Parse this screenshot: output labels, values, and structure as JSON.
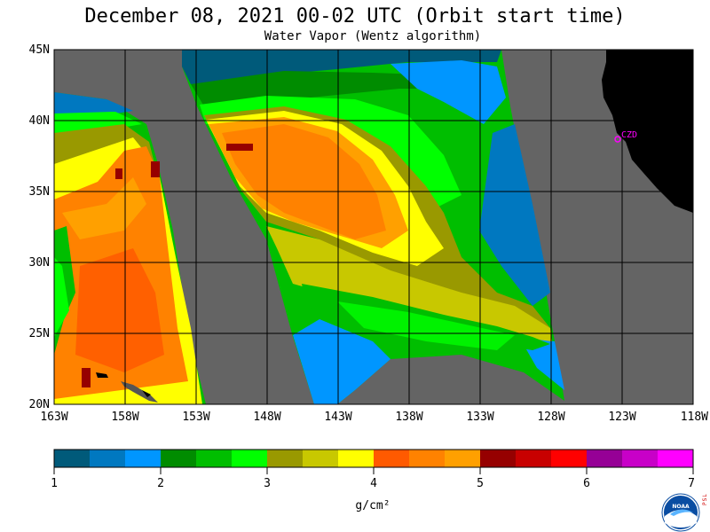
{
  "header": {
    "title": "December 08, 2021  00-02 UTC  (Orbit start time)",
    "subtitle": "Water Vapor (Wentz algorithm)"
  },
  "map": {
    "lat_range": [
      20,
      45
    ],
    "lon_range": [
      -163,
      -118
    ],
    "lat_labels": [
      "20N",
      "25N",
      "30N",
      "35N",
      "40N",
      "45N"
    ],
    "lon_labels": [
      "163W",
      "158W",
      "153W",
      "148W",
      "143W",
      "138W",
      "133W",
      "128W",
      "123W",
      "118W"
    ],
    "station_label": "CZD",
    "colors": {
      "no_data": "#646464",
      "land": "#000000",
      "station": "#ff00ff",
      "grid": "#000000"
    }
  },
  "colorbar": {
    "min": 1,
    "max": 7,
    "tick_labels": [
      "1",
      "2",
      "3",
      "4",
      "5",
      "6",
      "7"
    ],
    "colors": [
      "#005a7a",
      "#0078c0",
      "#0096ff",
      "#008c00",
      "#00be00",
      "#00ff00",
      "#999900",
      "#c8c800",
      "#ffff00",
      "#ff5a00",
      "#ff8200",
      "#ffa000",
      "#960000",
      "#c80000",
      "#ff0000",
      "#960096",
      "#c800c8",
      "#ff00ff"
    ],
    "units_label": "g/cm²"
  },
  "logo": {
    "name": "NOAA",
    "side_text": "PSL"
  }
}
